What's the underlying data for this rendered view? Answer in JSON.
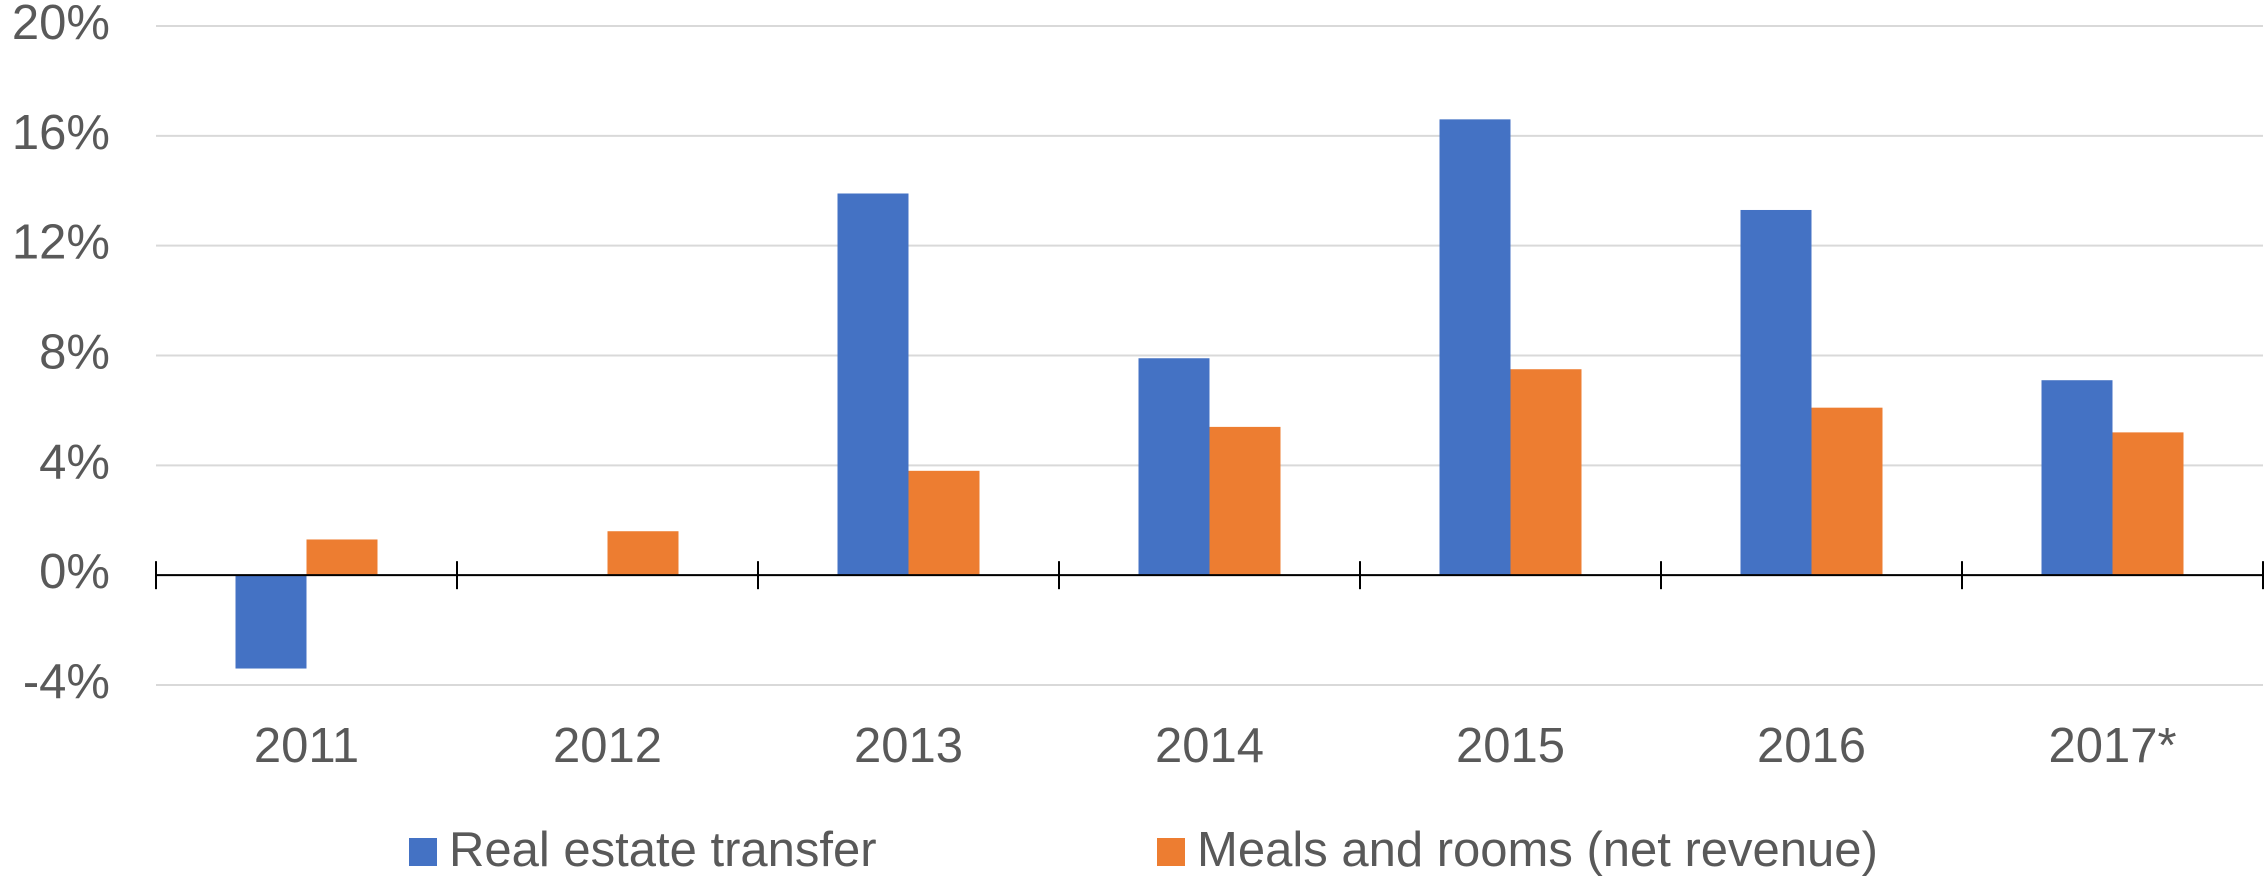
{
  "chart_data": {
    "type": "bar",
    "categories": [
      "2011",
      "2012",
      "2013",
      "2014",
      "2015",
      "2016",
      "2017*"
    ],
    "series": [
      {
        "name": "Real estate transfer",
        "color": "#4472c4",
        "values": [
          -3.4,
          0,
          13.9,
          7.9,
          16.6,
          13.3,
          7.1
        ]
      },
      {
        "name": "Meals and rooms (net revenue)",
        "color": "#ed7d31",
        "values": [
          1.3,
          1.6,
          3.8,
          5.4,
          7.5,
          6.1,
          5.2
        ]
      }
    ],
    "ylim": [
      -4,
      20
    ],
    "yticks": [
      {
        "value": -4,
        "label": "-4%"
      },
      {
        "value": 0,
        "label": "0%"
      },
      {
        "value": 4,
        "label": "4%"
      },
      {
        "value": 8,
        "label": "8%"
      },
      {
        "value": 12,
        "label": "12%"
      },
      {
        "value": 16,
        "label": "16%"
      },
      {
        "value": 20,
        "label": "20%"
      }
    ],
    "grid": true,
    "legend": "bottom"
  }
}
